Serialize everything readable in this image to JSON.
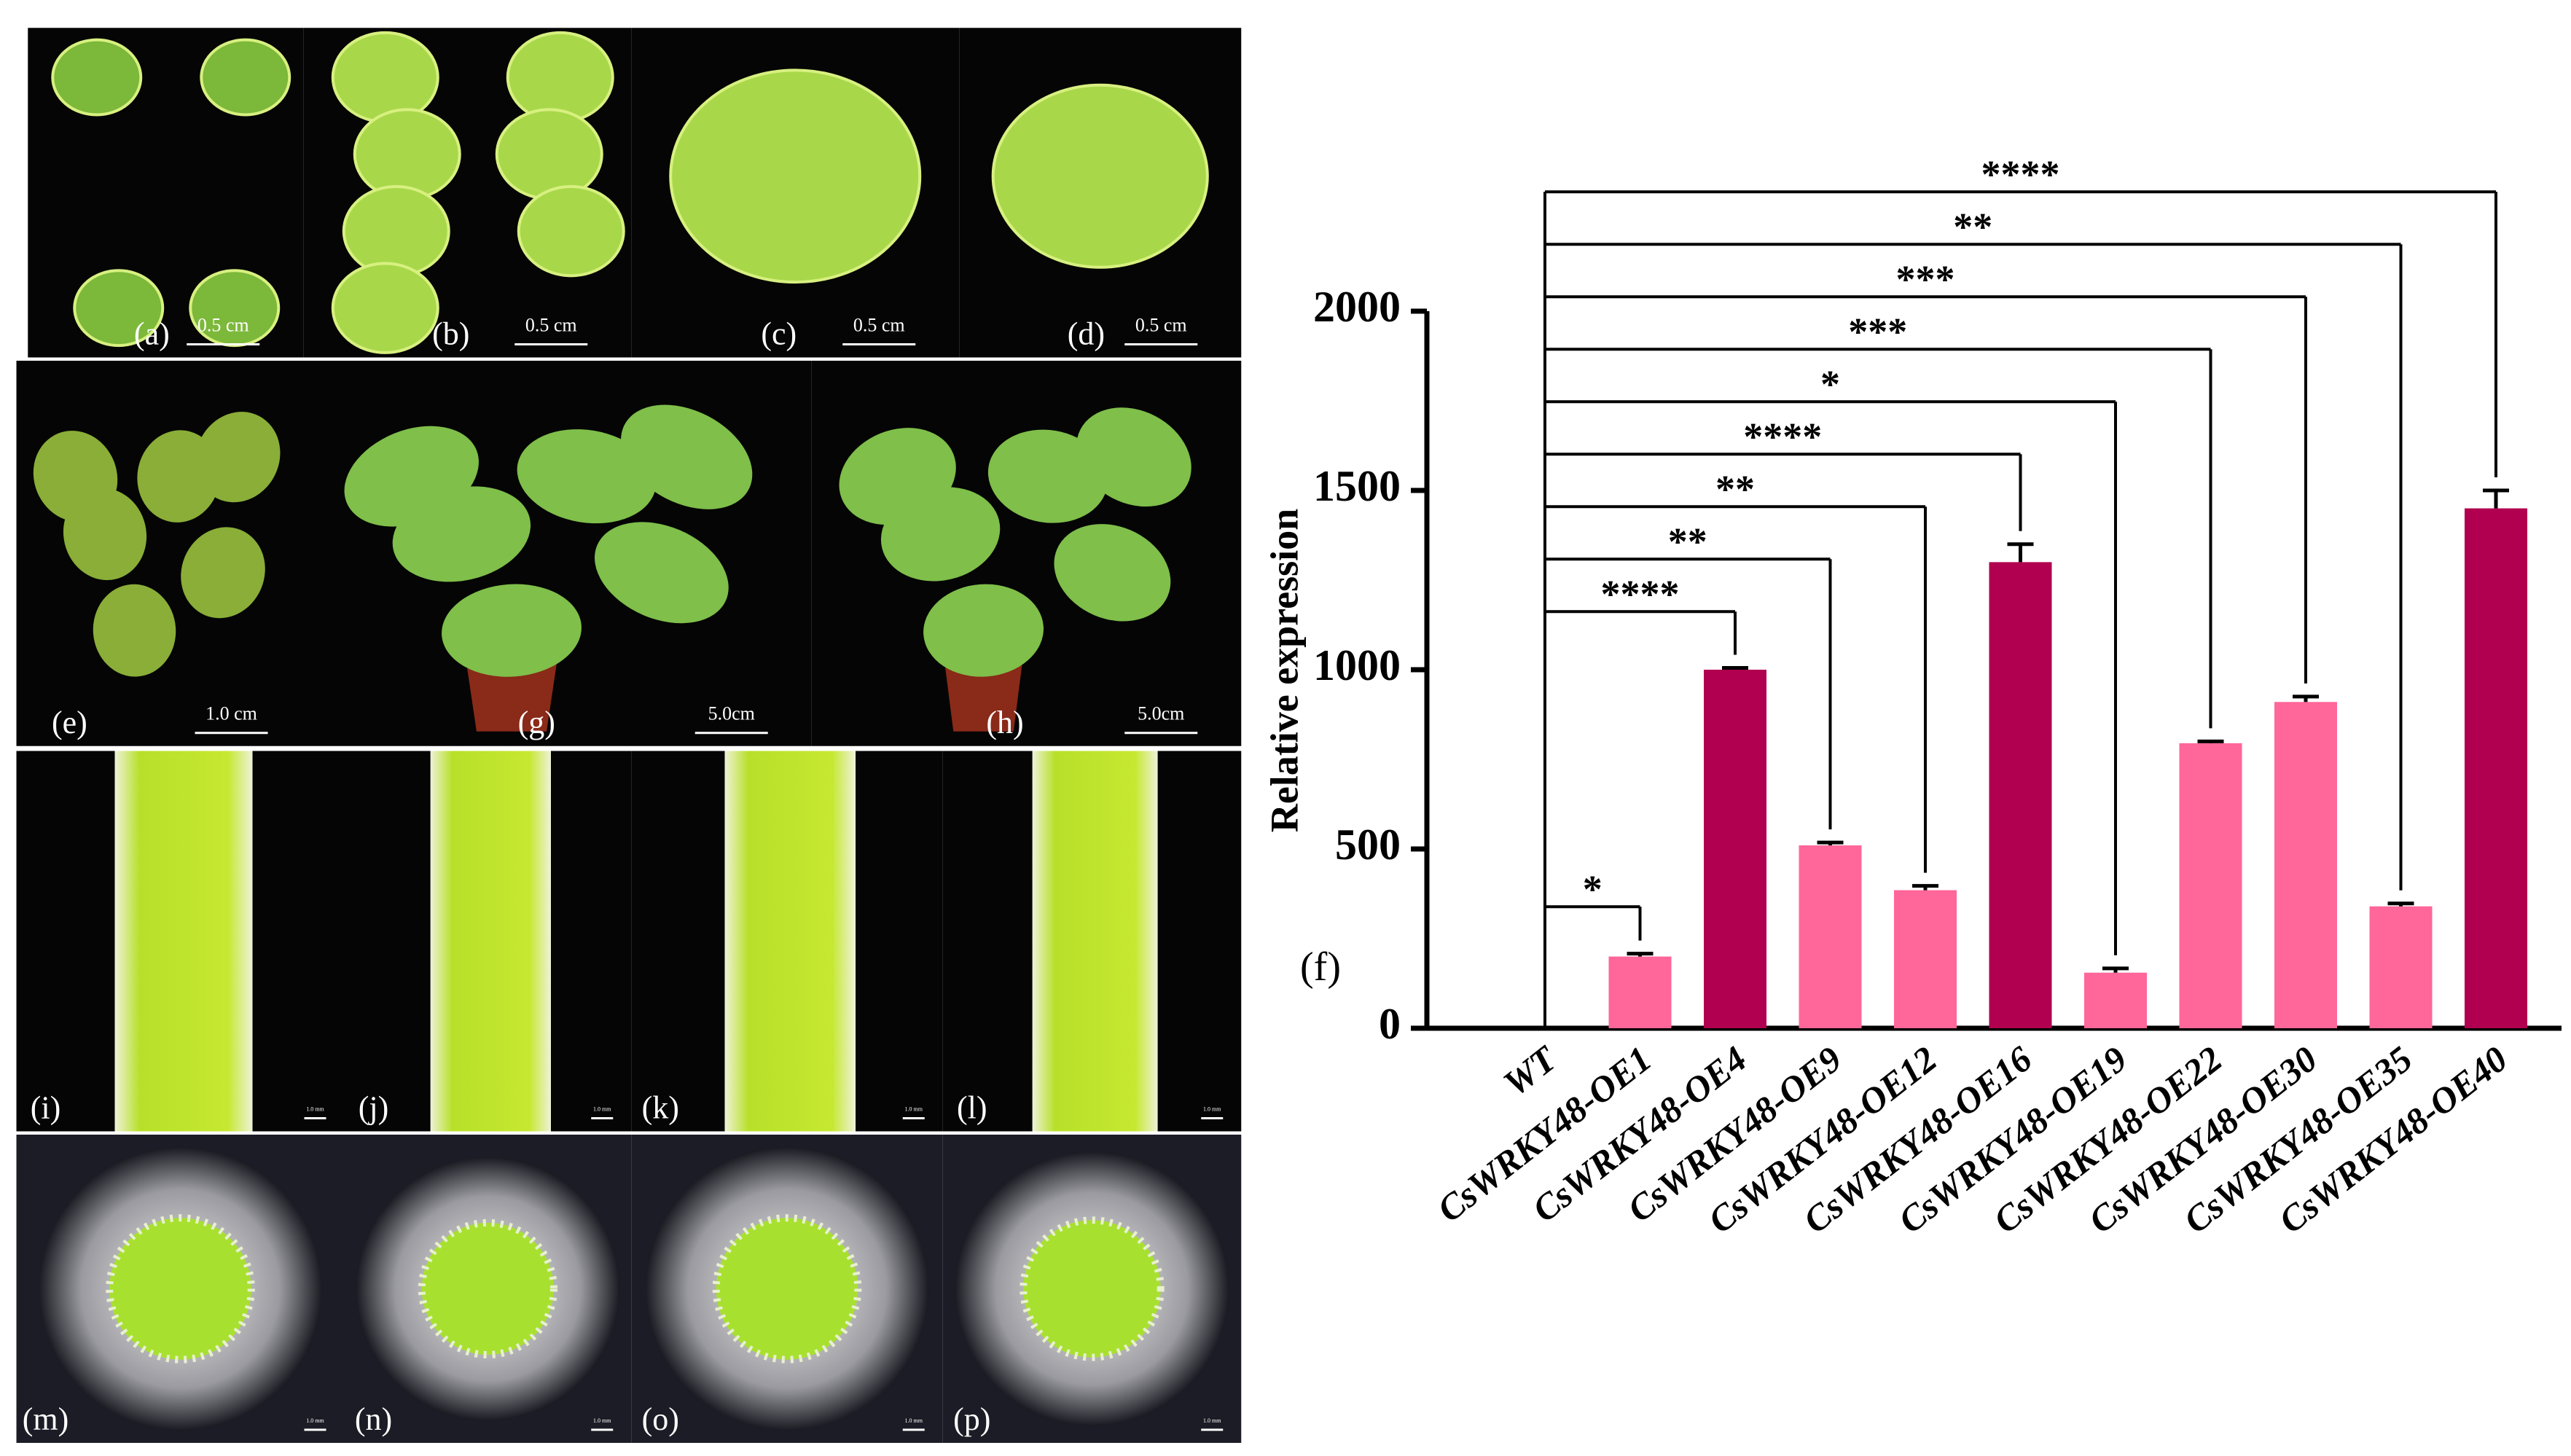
{
  "panels": [
    {
      "label": "(a)",
      "scale": "0.5 cm"
    },
    {
      "label": "(b)",
      "scale": "0.5 cm"
    },
    {
      "label": "(c)",
      "scale": "0.5 cm"
    },
    {
      "label": "(d)",
      "scale": "0.5 cm"
    },
    {
      "label": "(e)",
      "scale": "1.0 cm"
    },
    {
      "label": "(g)",
      "scale": "5.0cm"
    },
    {
      "label": "(h)",
      "scale": "5.0cm"
    },
    {
      "label": "(i)",
      "scale": "1.0 mm"
    },
    {
      "label": "(j)",
      "scale": "1.0 mm"
    },
    {
      "label": "(k)",
      "scale": "1.0 mm"
    },
    {
      "label": "(l)",
      "scale": "1.0 mm"
    },
    {
      "label": "(m)",
      "scale": "1.0 mm"
    },
    {
      "label": "(n)",
      "scale": "1.0 mm"
    },
    {
      "label": "(o)",
      "scale": "1.0 mm"
    },
    {
      "label": "(p)",
      "scale": "1.0 mm"
    }
  ],
  "chart_data": {
    "type": "bar",
    "panel_label": "(f)",
    "y_label": "Relative expression",
    "categories": [
      "WT",
      "CsWRKY48-OE1",
      "CsWRKY48-OE4",
      "CsWRKY48-OE9",
      "CsWRKY48-OE12",
      "CsWRKY48-OE16",
      "CsWRKY48-OE19",
      "CsWRKY48-OE22",
      "CsWRKY48-OE30",
      "CsWRKY48-OE35",
      "CsWRKY48-OE40"
    ],
    "values": [
      0,
      200,
      1000,
      510,
      385,
      1300,
      155,
      795,
      910,
      340,
      1450
    ],
    "errors": [
      0,
      8,
      5,
      8,
      12,
      50,
      12,
      5,
      15,
      8,
      50
    ],
    "colors": [
      "#ff6699",
      "#ff6699",
      "#b0004f",
      "#ff6699",
      "#ff6699",
      "#b0004f",
      "#ff6699",
      "#ff6699",
      "#ff6699",
      "#ff6699",
      "#b0004f"
    ],
    "significance": [
      null,
      "*",
      "****",
      "**",
      "**",
      "****",
      "*",
      "***",
      "***",
      "**",
      "****"
    ],
    "ylim": [
      0,
      2000
    ],
    "yticks": [
      0,
      500,
      1000,
      1500,
      2000
    ]
  }
}
